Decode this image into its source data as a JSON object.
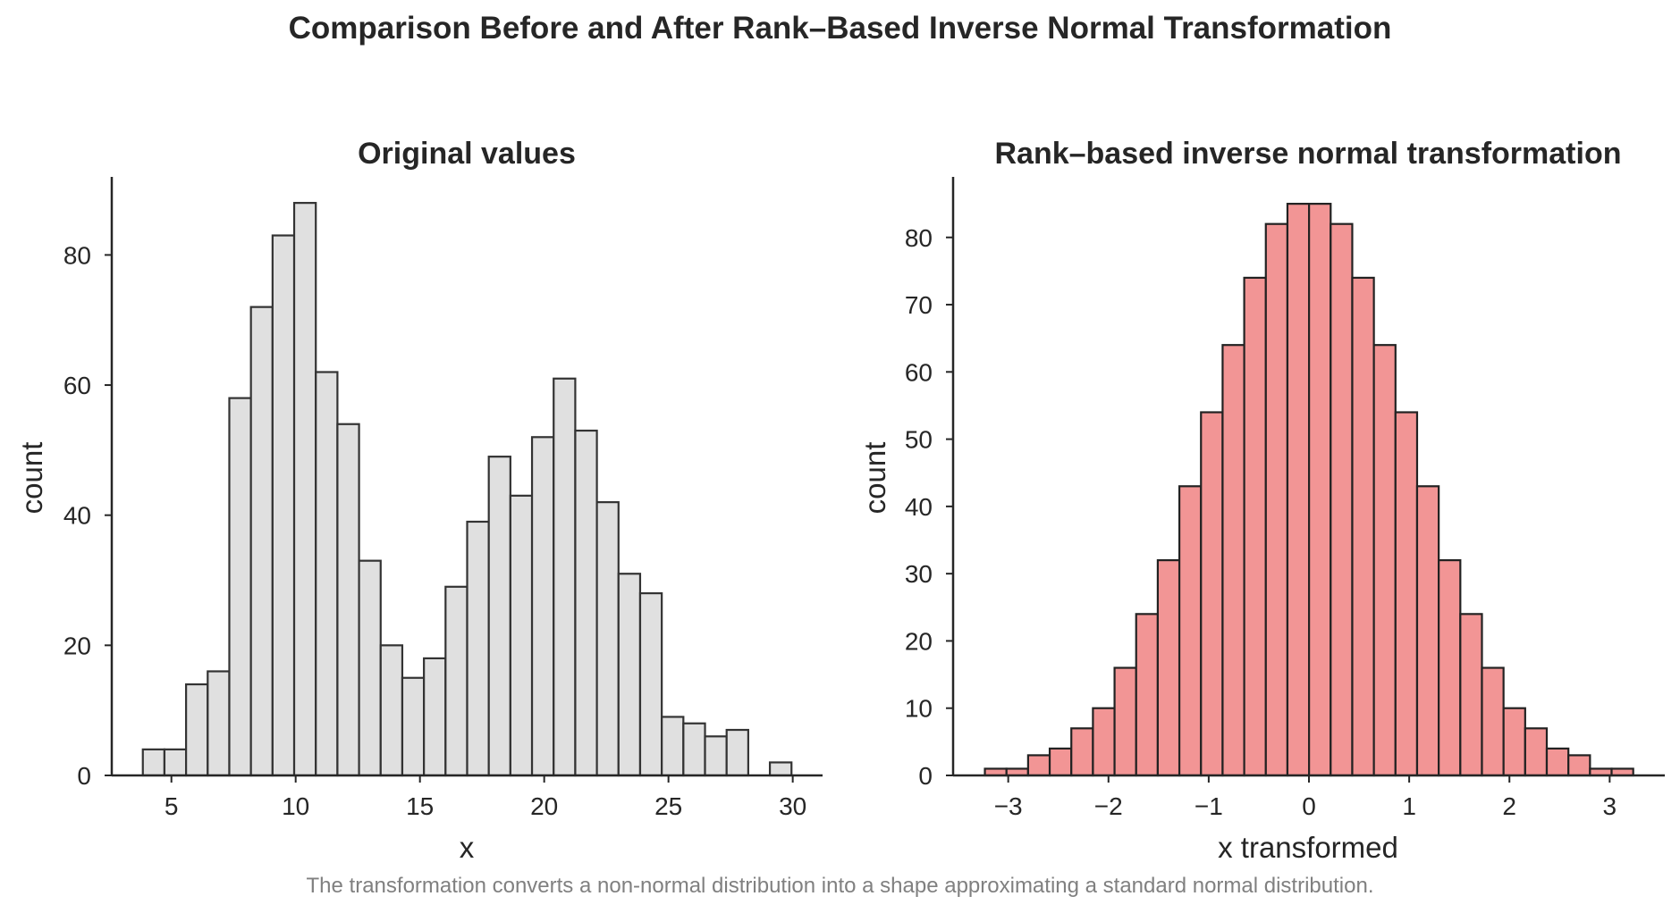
{
  "figure": {
    "suptitle": "Comparison Before and After Rank–Based Inverse Normal Transformation",
    "caption": "The transformation converts a non-normal distribution into a shape approximating a standard normal distribution."
  },
  "chart_data": [
    {
      "type": "bar",
      "title": "Original values",
      "xlabel": "x",
      "ylabel": "count",
      "xlim": [
        2.6,
        31.2
      ],
      "ylim": [
        0,
        92
      ],
      "xticks": [
        5,
        10,
        15,
        20,
        25,
        30
      ],
      "xtick_labels": [
        "5",
        "10",
        "15",
        "20",
        "25",
        "30"
      ],
      "yticks": [
        0,
        20,
        40,
        60,
        80
      ],
      "ytick_labels": [
        "0",
        "20",
        "40",
        "60",
        "80"
      ],
      "grid": false,
      "bar_color": "#e0e0e0",
      "edge_color": "#333333",
      "bin_width": 0.87,
      "bin_start": 3.85,
      "values": [
        4,
        4,
        14,
        16,
        58,
        72,
        83,
        88,
        62,
        54,
        33,
        20,
        15,
        18,
        29,
        39,
        49,
        43,
        52,
        61,
        53,
        42,
        31,
        28,
        9,
        8,
        6,
        7,
        0,
        2
      ]
    },
    {
      "type": "bar",
      "title": "Rank–based inverse normal transformation",
      "xlabel": "x transformed",
      "ylabel": "count",
      "xlim": [
        -3.55,
        3.55
      ],
      "ylim": [
        0,
        89
      ],
      "xticks": [
        -3,
        -2,
        -1,
        0,
        1,
        2,
        3
      ],
      "xtick_labels": [
        "−3",
        "−2",
        "−1",
        "0",
        "1",
        "2",
        "3"
      ],
      "yticks": [
        0,
        10,
        20,
        30,
        40,
        50,
        60,
        70,
        80
      ],
      "ytick_labels": [
        "0",
        "10",
        "20",
        "30",
        "40",
        "50",
        "60",
        "70",
        "80"
      ],
      "grid": false,
      "bar_color": "#f29595",
      "edge_color": "#222222",
      "bin_width": 0.2156,
      "bin_start": -3.233,
      "values": [
        1,
        1,
        3,
        4,
        7,
        10,
        16,
        24,
        32,
        43,
        54,
        64,
        74,
        82,
        85,
        85,
        82,
        74,
        64,
        54,
        43,
        32,
        24,
        16,
        10,
        7,
        4,
        3,
        1,
        1
      ]
    }
  ]
}
